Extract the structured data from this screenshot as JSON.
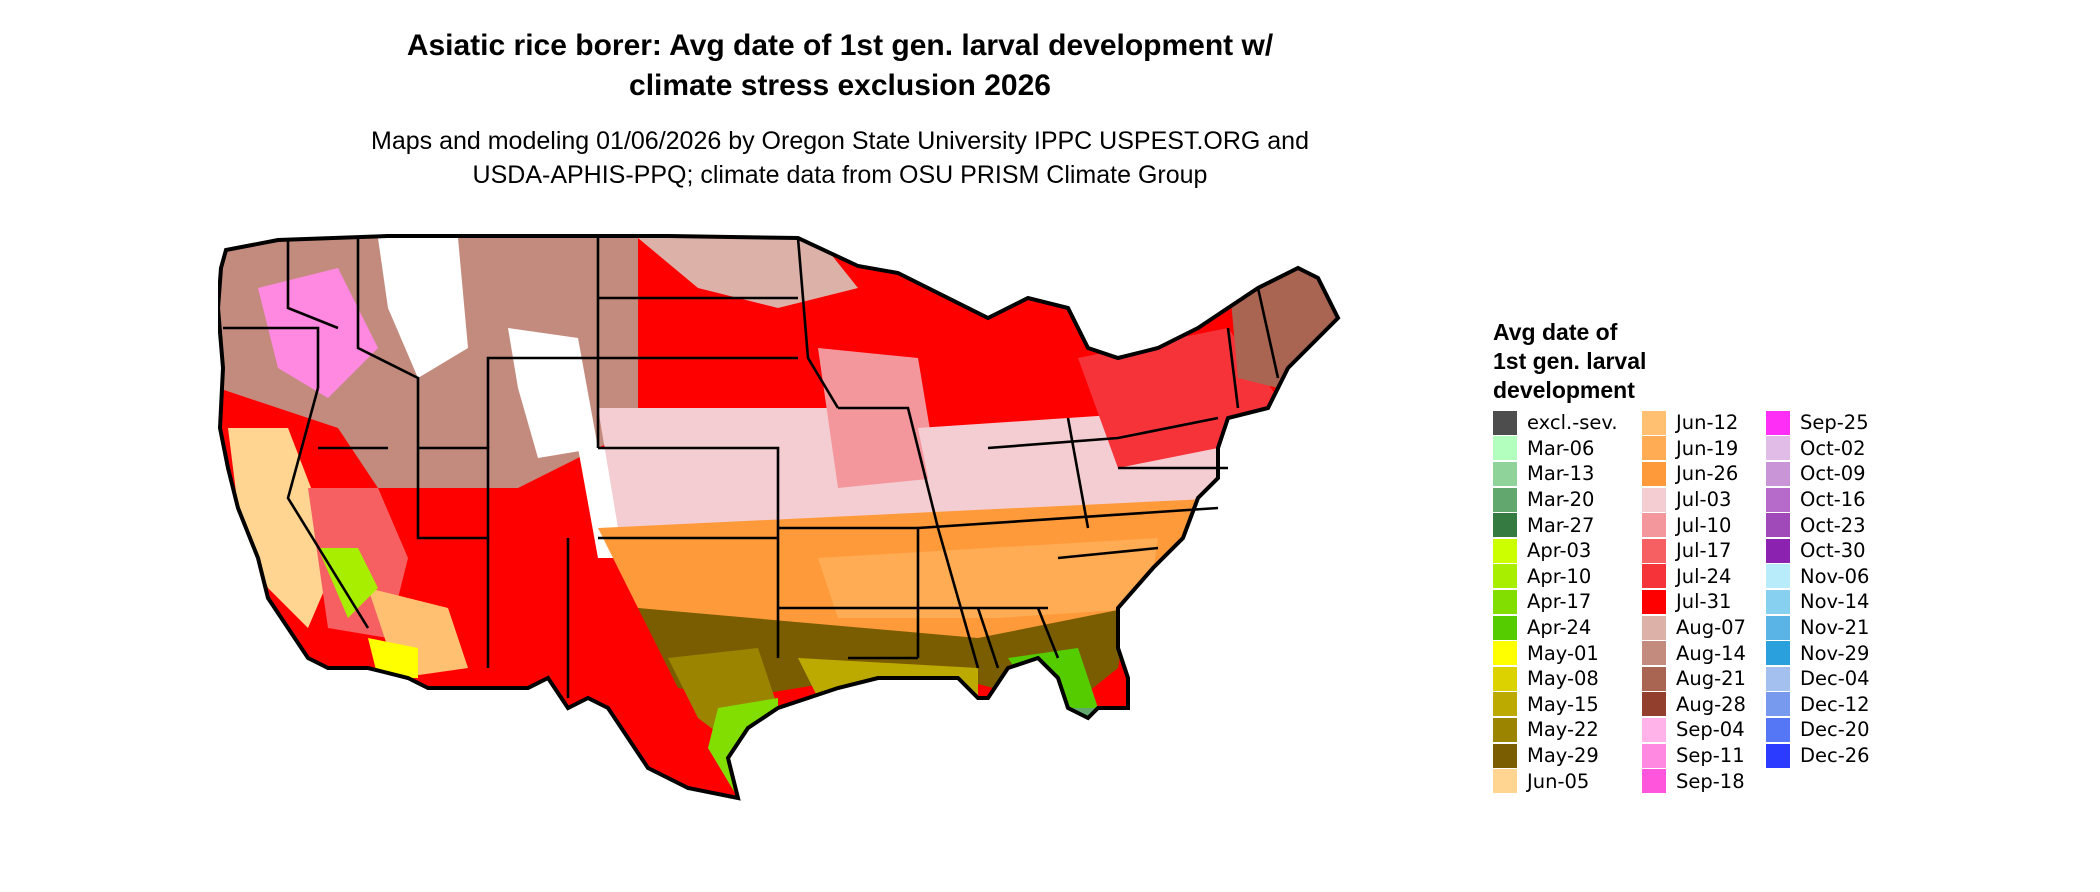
{
  "title_lines": [
    "Asiatic rice borer: Avg date of 1st gen. larval development w/",
    "climate stress exclusion 2026"
  ],
  "subtitle_lines": [
    "Maps and modeling 01/06/2026 by Oregon State University IPPC USPEST.ORG and",
    "USDA-APHIS-PPQ; climate data from OSU PRISM Climate Group"
  ],
  "legend": {
    "title_lines": [
      "Avg date of",
      "1st gen. larval",
      "development"
    ],
    "columns": [
      [
        {
          "label": "excl.-sev.",
          "color": "#4d4d4d"
        },
        {
          "label": "Mar-06",
          "color": "#b2ffbe"
        },
        {
          "label": "Mar-13",
          "color": "#8fd39b"
        },
        {
          "label": "Mar-20",
          "color": "#62a86e"
        },
        {
          "label": "Mar-27",
          "color": "#357a41"
        },
        {
          "label": "Apr-03",
          "color": "#ccff00"
        },
        {
          "label": "Apr-10",
          "color": "#a8ee00"
        },
        {
          "label": "Apr-17",
          "color": "#82dd00"
        },
        {
          "label": "Apr-24",
          "color": "#55cc00"
        },
        {
          "label": "May-01",
          "color": "#ffff00"
        },
        {
          "label": "May-08",
          "color": "#dcd200"
        },
        {
          "label": "May-15",
          "color": "#bcaa00"
        },
        {
          "label": "May-22",
          "color": "#9a8400"
        },
        {
          "label": "May-29",
          "color": "#7a5d00"
        },
        {
          "label": "Jun-05",
          "color": "#ffd591"
        }
      ],
      [
        {
          "label": "Jun-12",
          "color": "#ffc171"
        },
        {
          "label": "Jun-19",
          "color": "#ffac55"
        },
        {
          "label": "Jun-26",
          "color": "#ff9a3a"
        },
        {
          "label": "Jul-03",
          "color": "#f4cdd2"
        },
        {
          "label": "Jul-10",
          "color": "#f4979c"
        },
        {
          "label": "Jul-17",
          "color": "#f66062"
        },
        {
          "label": "Jul-24",
          "color": "#f7333a"
        },
        {
          "label": "Jul-31",
          "color": "#ff0000"
        },
        {
          "label": "Aug-07",
          "color": "#dbb1a8"
        },
        {
          "label": "Aug-14",
          "color": "#c38b7d"
        },
        {
          "label": "Aug-21",
          "color": "#a96552"
        },
        {
          "label": "Aug-28",
          "color": "#933f2d"
        },
        {
          "label": "Sep-04",
          "color": "#ffb3e8"
        },
        {
          "label": "Sep-11",
          "color": "#ff88e0"
        },
        {
          "label": "Sep-18",
          "color": "#ff55dd"
        }
      ],
      [
        {
          "label": "Sep-25",
          "color": "#ff2ef6"
        },
        {
          "label": "Oct-02",
          "color": "#e1bce6"
        },
        {
          "label": "Oct-09",
          "color": "#ca95d7"
        },
        {
          "label": "Oct-16",
          "color": "#b66ac9"
        },
        {
          "label": "Oct-23",
          "color": "#a04ab9"
        },
        {
          "label": "Oct-30",
          "color": "#8b22b0"
        },
        {
          "label": "Nov-06",
          "color": "#b8ecfb"
        },
        {
          "label": "Nov-14",
          "color": "#88d0f0"
        },
        {
          "label": "Nov-21",
          "color": "#5ab5e6"
        },
        {
          "label": "Nov-29",
          "color": "#2aa0dc"
        },
        {
          "label": "Dec-04",
          "color": "#a3c0ee"
        },
        {
          "label": "Dec-12",
          "color": "#7799ee"
        },
        {
          "label": "Dec-20",
          "color": "#5577f6"
        },
        {
          "label": "Dec-26",
          "color": "#2b3bff"
        }
      ]
    ]
  },
  "map_colors": {
    "outline": "#000000",
    "excluded_white": "#ffffff",
    "west_magenta": "#ff66ee"
  }
}
